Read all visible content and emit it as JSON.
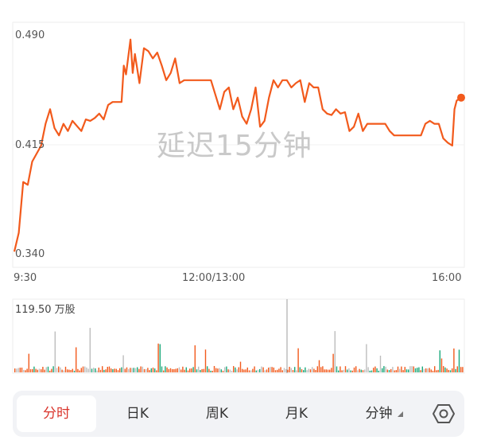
{
  "price": {
    "y_labels": [
      "0.490",
      "0.415",
      "0.340"
    ],
    "x_labels": [
      "9:30",
      "12:00/13:00",
      "16:00"
    ],
    "watermark": "延迟15分钟",
    "line_color": "#f25a1c",
    "ylim": [
      0.34,
      0.49
    ]
  },
  "volume": {
    "label": "119.50 万股",
    "up_color": "#f25a1c",
    "down_color": "#1aa87a",
    "neutral_color": "#bdbdbd"
  },
  "tabs": [
    {
      "label": "分时",
      "active": true
    },
    {
      "label": "日K",
      "active": false
    },
    {
      "label": "周K",
      "active": false
    },
    {
      "label": "月K",
      "active": false
    },
    {
      "label": "分钟",
      "active": false
    }
  ],
  "settings_icon": "settings-hexagon-icon",
  "chart_data": {
    "type": "line",
    "title": "",
    "xlabel": "",
    "ylabel": "",
    "x": [
      0,
      0.01,
      0.02,
      0.03,
      0.04,
      0.06,
      0.07,
      0.08,
      0.09,
      0.1,
      0.11,
      0.12,
      0.13,
      0.15,
      0.16,
      0.17,
      0.18,
      0.19,
      0.2,
      0.21,
      0.22,
      0.23,
      0.24,
      0.245,
      0.25,
      0.26,
      0.265,
      0.27,
      0.28,
      0.29,
      0.3,
      0.31,
      0.32,
      0.33,
      0.34,
      0.35,
      0.36,
      0.37,
      0.38,
      0.39,
      0.4,
      0.41,
      0.42,
      0.43,
      0.44,
      0.45,
      0.46,
      0.47,
      0.48,
      0.49,
      0.5,
      0.51,
      0.52,
      0.53,
      0.54,
      0.55,
      0.56,
      0.57,
      0.58,
      0.59,
      0.6,
      0.61,
      0.62,
      0.63,
      0.64,
      0.65,
      0.66,
      0.67,
      0.68,
      0.69,
      0.7,
      0.71,
      0.72,
      0.73,
      0.74,
      0.75,
      0.76,
      0.77,
      0.78,
      0.79,
      0.8,
      0.81,
      0.82,
      0.83,
      0.84,
      0.85,
      0.86,
      0.87,
      0.88,
      0.89,
      0.9,
      0.91,
      0.92,
      0.93,
      0.94,
      0.95,
      0.96,
      0.97,
      0.98,
      0.985,
      0.99,
      1.0
    ],
    "series": [
      {
        "values": [
          0.342,
          0.355,
          0.39,
          0.388,
          0.404,
          0.415,
          0.43,
          0.44,
          0.427,
          0.422,
          0.43,
          0.425,
          0.432,
          0.425,
          0.433,
          0.432,
          0.434,
          0.437,
          0.433,
          0.443,
          0.445,
          0.445,
          0.445,
          0.47,
          0.464,
          0.488,
          0.465,
          0.478,
          0.458,
          0.482,
          0.48,
          0.475,
          0.479,
          0.47,
          0.46,
          0.465,
          0.475,
          0.458,
          0.46,
          0.46,
          0.46,
          0.46,
          0.46,
          0.46,
          0.46,
          0.45,
          0.44,
          0.452,
          0.455,
          0.44,
          0.448,
          0.435,
          0.43,
          0.44,
          0.455,
          0.428,
          0.432,
          0.448,
          0.46,
          0.455,
          0.46,
          0.46,
          0.455,
          0.458,
          0.46,
          0.445,
          0.458,
          0.455,
          0.455,
          0.44,
          0.437,
          0.436,
          0.44,
          0.437,
          0.438,
          0.425,
          0.428,
          0.437,
          0.425,
          0.43,
          0.43,
          0.43,
          0.43,
          0.43,
          0.425,
          0.422,
          0.422,
          0.422,
          0.422,
          0.422,
          0.422,
          0.422,
          0.43,
          0.432,
          0.43,
          0.43,
          0.42,
          0.417,
          0.415,
          0.44,
          0.446,
          0.448
        ]
      }
    ]
  }
}
